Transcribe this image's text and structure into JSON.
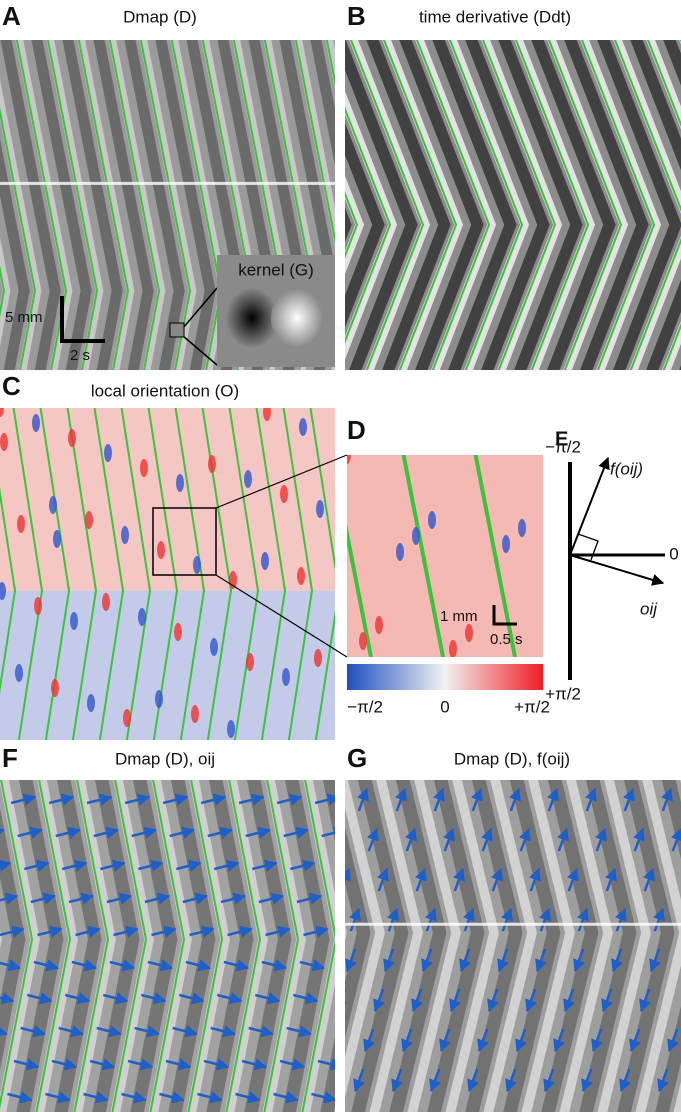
{
  "panels": {
    "A": {
      "label": "A",
      "title": "Dmap (D)",
      "inset_title": "kernel (G)",
      "scale_y": "5 mm",
      "scale_x": "2 s"
    },
    "B": {
      "label": "B",
      "title": "time derivative (Ddt)"
    },
    "C": {
      "label": "C",
      "title": "local orientation (O)"
    },
    "D": {
      "label": "D",
      "scale_y": "1 mm",
      "scale_x": "0.5 s",
      "colorbar_labels": [
        "−π/2",
        "0",
        "+π/2"
      ]
    },
    "E": {
      "label": "E",
      "top": "−π/2",
      "bottom": "+π/2",
      "right": "0",
      "arrow_up": "f(oij)",
      "arrow_down": "oij"
    },
    "F": {
      "label": "F",
      "title": "Dmap (D), oij"
    },
    "G": {
      "label": "G",
      "title": "Dmap (D), f(oij)"
    }
  }
}
